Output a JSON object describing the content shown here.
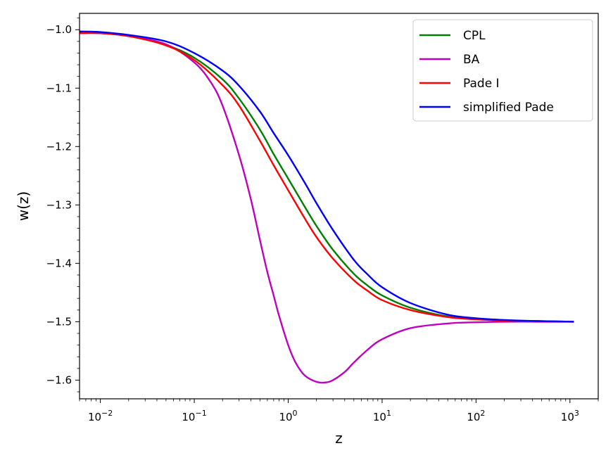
{
  "chart_data": {
    "type": "line",
    "title": "",
    "xlabel": "z",
    "ylabel": "w(z)",
    "xscale": "log",
    "xlim": [
      0.006,
      2000
    ],
    "ylim": [
      -1.632,
      -0.972
    ],
    "grid": false,
    "legend_position": "top-right",
    "xticks": [
      {
        "value": 0.01,
        "base": "10",
        "exp": "−2"
      },
      {
        "value": 0.1,
        "base": "10",
        "exp": "−1"
      },
      {
        "value": 1,
        "base": "10",
        "exp": "0"
      },
      {
        "value": 10,
        "base": "10",
        "exp": "1"
      },
      {
        "value": 100,
        "base": "10",
        "exp": "2"
      },
      {
        "value": 1000,
        "base": "10",
        "exp": "3"
      }
    ],
    "yticks": [
      {
        "value": -1.0,
        "label": "−1.0"
      },
      {
        "value": -1.1,
        "label": "−1.1"
      },
      {
        "value": -1.2,
        "label": "−1.2"
      },
      {
        "value": -1.3,
        "label": "−1.3"
      },
      {
        "value": -1.4,
        "label": "−1.4"
      },
      {
        "value": -1.5,
        "label": "−1.5"
      },
      {
        "value": -1.6,
        "label": "−1.6"
      }
    ],
    "series": [
      {
        "name": "CPL",
        "color": "#008000",
        "x": [
          0.006,
          0.01,
          0.02,
          0.05,
          0.1,
          0.2,
          0.3,
          0.5,
          0.7,
          1,
          1.5,
          2,
          3,
          5,
          7,
          10,
          20,
          50,
          100,
          200,
          500,
          1100
        ],
        "y": [
          -1.006,
          -1.006,
          -1.011,
          -1.026,
          -1.048,
          -1.085,
          -1.118,
          -1.171,
          -1.213,
          -1.255,
          -1.303,
          -1.336,
          -1.377,
          -1.418,
          -1.438,
          -1.455,
          -1.476,
          -1.491,
          -1.495,
          -1.498,
          -1.499,
          -1.5
        ]
      },
      {
        "name": "BA",
        "color": "#bf00bf",
        "x": [
          0.006,
          0.01,
          0.02,
          0.05,
          0.1,
          0.15,
          0.2,
          0.3,
          0.4,
          0.5,
          0.6,
          0.7,
          0.8,
          1.0,
          1.2,
          1.5,
          2.0,
          2.5,
          3.0,
          4.0,
          5.0,
          7.0,
          10,
          20,
          50,
          100,
          200,
          500,
          1100
        ],
        "y": [
          -1.006,
          -1.006,
          -1.011,
          -1.025,
          -1.056,
          -1.09,
          -1.13,
          -1.215,
          -1.29,
          -1.36,
          -1.415,
          -1.455,
          -1.49,
          -1.54,
          -1.57,
          -1.592,
          -1.603,
          -1.604,
          -1.6,
          -1.586,
          -1.57,
          -1.548,
          -1.53,
          -1.511,
          -1.503,
          -1.501,
          -1.5,
          -1.5,
          -1.5
        ]
      },
      {
        "name": "Pade I",
        "color": "#ff0000",
        "x": [
          0.006,
          0.01,
          0.02,
          0.05,
          0.1,
          0.2,
          0.3,
          0.5,
          0.7,
          1,
          1.5,
          2,
          3,
          5,
          7,
          10,
          20,
          50,
          100,
          200,
          500,
          1100
        ],
        "y": [
          -1.006,
          -1.006,
          -1.011,
          -1.027,
          -1.052,
          -1.095,
          -1.13,
          -1.19,
          -1.232,
          -1.275,
          -1.323,
          -1.355,
          -1.392,
          -1.429,
          -1.447,
          -1.463,
          -1.48,
          -1.492,
          -1.496,
          -1.498,
          -1.499,
          -1.5
        ]
      },
      {
        "name": "simplified Pade",
        "color": "#0000ff",
        "x": [
          0.006,
          0.01,
          0.02,
          0.05,
          0.1,
          0.2,
          0.3,
          0.5,
          0.7,
          1,
          1.5,
          2,
          3,
          5,
          7,
          10,
          20,
          50,
          100,
          200,
          500,
          1100
        ],
        "y": [
          -1.003,
          -1.004,
          -1.009,
          -1.02,
          -1.04,
          -1.07,
          -1.096,
          -1.14,
          -1.177,
          -1.215,
          -1.262,
          -1.297,
          -1.343,
          -1.394,
          -1.419,
          -1.441,
          -1.468,
          -1.488,
          -1.494,
          -1.497,
          -1.499,
          -1.5
        ]
      }
    ]
  }
}
